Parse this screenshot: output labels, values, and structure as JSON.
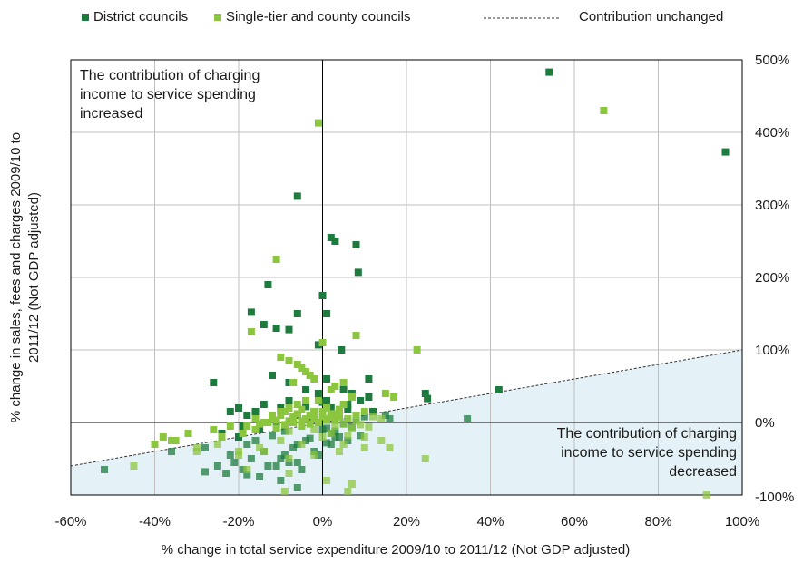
{
  "chart_data": {
    "type": "scatter",
    "title": "",
    "xlabel": "% change in total service expenditure 2009/10 to 2011/12 (Not GDP adjusted)",
    "ylabel": "% change in sales, fees and charges 2009/10 to 2011/12 (Not GDP adjusted)",
    "xlim": [
      -60,
      100
    ],
    "ylim": [
      -100,
      500
    ],
    "x_ticks": [
      -60,
      -40,
      -20,
      0,
      20,
      40,
      60,
      80,
      100
    ],
    "x_tick_labels": [
      "-60%",
      "-40%",
      "-20%",
      "0%",
      "20%",
      "40%",
      "60%",
      "80%",
      "100%"
    ],
    "y_ticks": [
      -100,
      0,
      100,
      200,
      300,
      400,
      500
    ],
    "y_tick_labels": [
      "-100%",
      "0%",
      "100%",
      "200%",
      "300%",
      "400%",
      "500%"
    ],
    "y_axis_side": "right",
    "grid": true,
    "legend_position": "top",
    "colors": {
      "district": "#1e7b3e",
      "single_tier": "#8cc63f",
      "shade": "#e4f1f6",
      "line": "#333333",
      "grid": "#bfbfbf"
    },
    "legend": {
      "district": "District councils",
      "single_tier": "Single-tier and county councils",
      "line": "Contribution unchanged"
    },
    "annotations": {
      "upper": [
        "The contribution of charging",
        "income to service spending",
        "increased"
      ],
      "lower": [
        "The contribution of charging",
        "income to service spending",
        "decreased"
      ]
    },
    "reference_line": {
      "name": "Contribution unchanged",
      "x": [
        -60,
        100
      ],
      "y": [
        -60,
        100
      ]
    },
    "series": [
      {
        "name": "District councils",
        "x": [
          54,
          96,
          2,
          3,
          8,
          -6,
          8.5,
          -13,
          0,
          -17,
          -6,
          1,
          -14,
          -11,
          -8,
          -1,
          4.5,
          -26,
          1,
          5,
          7,
          11,
          -12,
          -8,
          -4,
          1,
          2,
          6,
          9,
          11,
          12,
          15,
          16,
          42,
          24.5,
          25,
          34.5,
          -22,
          -20,
          -18,
          -16,
          -14,
          -12,
          -10,
          -8,
          -6,
          -4,
          -2,
          -1,
          0,
          2,
          4,
          6,
          8,
          10,
          -19,
          -15,
          -11,
          -7,
          -3,
          1,
          3,
          5,
          7,
          -24,
          -20,
          -16,
          -12,
          -9,
          -6,
          -3,
          0,
          2,
          4,
          6,
          9,
          -36,
          -28,
          -22,
          -18,
          -14,
          -10,
          -7,
          -4,
          -1,
          1,
          3,
          -25,
          -21,
          -17,
          -13,
          -9,
          -6,
          -2,
          2,
          -23,
          -19,
          -15,
          -11,
          -8,
          -5,
          -28,
          -18,
          -10,
          -6,
          -52
        ],
        "y": [
          483,
          373,
          255,
          250,
          245,
          312,
          207,
          190,
          175,
          152,
          150,
          150,
          135,
          130,
          128,
          107,
          100,
          55,
          60,
          45,
          40,
          60,
          65,
          55,
          45,
          30,
          20,
          25,
          30,
          35,
          15,
          10,
          5,
          45,
          40,
          33,
          5,
          15,
          20,
          10,
          15,
          25,
          8,
          20,
          30,
          10,
          22,
          15,
          40,
          28,
          8,
          12,
          18,
          5,
          8,
          -5,
          -10,
          -3,
          0,
          5,
          -8,
          -12,
          -2,
          -6,
          -15,
          -20,
          -25,
          -18,
          -12,
          -30,
          -22,
          -10,
          -15,
          -20,
          -25,
          -18,
          -40,
          -35,
          -45,
          -30,
          -40,
          -50,
          -35,
          -25,
          -45,
          -28,
          -20,
          -60,
          -55,
          -50,
          -60,
          -45,
          -55,
          -40,
          -30,
          -70,
          -65,
          -75,
          -60,
          -55,
          -65,
          -68,
          -72,
          -80,
          -90,
          -65
        ]
      },
      {
        "name": "Single-tier and county councils",
        "x": [
          -1,
          67,
          91.5,
          -11,
          22.5,
          -17,
          0,
          8,
          -10,
          -8,
          -6,
          -4,
          -2,
          -5,
          -7,
          -3,
          2,
          3,
          5,
          7,
          -1,
          15,
          17,
          -36,
          -38,
          -32,
          -26,
          -22,
          -16,
          -12,
          -10,
          -8,
          -6,
          -4,
          -3,
          -2,
          0,
          1,
          2,
          3,
          4,
          5,
          6,
          8,
          10,
          12,
          14,
          -14,
          -12,
          -10,
          -9,
          -8,
          -7,
          -6,
          -5,
          -4,
          -3,
          -2,
          -1,
          0,
          1,
          2,
          3,
          4,
          6,
          8,
          -18,
          -15,
          -13,
          -11,
          -9,
          -7,
          -5,
          -3,
          -1,
          1,
          3,
          5,
          7,
          9,
          11,
          -24,
          -19,
          -16,
          -11,
          -8,
          -5,
          -2,
          2,
          6,
          10,
          14,
          -30,
          -25,
          -20,
          -15,
          -10,
          -5,
          0,
          5,
          10,
          -40,
          -35,
          -30,
          -20,
          -14,
          -8,
          -2,
          4,
          16,
          24.5,
          -45,
          -18,
          -8,
          1,
          7,
          -9,
          6
        ],
        "y": [
          413,
          430,
          -100,
          225,
          100,
          125,
          110,
          120,
          90,
          85,
          80,
          70,
          60,
          75,
          55,
          65,
          45,
          50,
          55,
          35,
          30,
          40,
          35,
          -25,
          -20,
          -15,
          -10,
          -5,
          5,
          10,
          15,
          20,
          25,
          30,
          10,
          5,
          15,
          20,
          8,
          12,
          18,
          25,
          5,
          10,
          15,
          8,
          5,
          0,
          5,
          10,
          15,
          2,
          8,
          12,
          18,
          5,
          10,
          15,
          0,
          8,
          5,
          12,
          3,
          8,
          5,
          2,
          -5,
          -2,
          0,
          3,
          -3,
          0,
          2,
          -2,
          0,
          3,
          -5,
          -2,
          -8,
          -3,
          -6,
          -20,
          -15,
          -10,
          -8,
          -12,
          -5,
          -10,
          -15,
          -18,
          -20,
          -25,
          -35,
          -30,
          -40,
          -35,
          -25,
          -30,
          -20,
          -30,
          -35,
          -30,
          -25,
          -40,
          -45,
          -40,
          -50,
          -45,
          -40,
          -35,
          -50,
          -60,
          -65,
          -70,
          -80,
          -85,
          -95,
          -95
        ]
      }
    ]
  }
}
